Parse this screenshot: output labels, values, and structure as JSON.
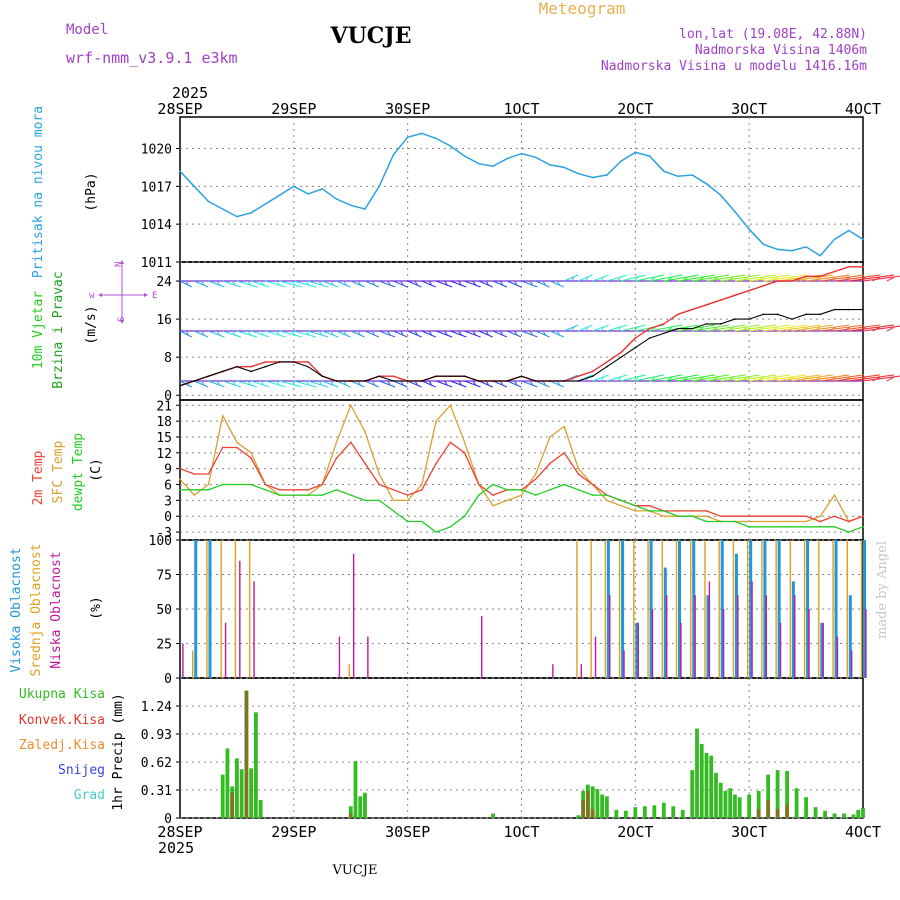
{
  "header": {
    "model_label": "Model",
    "model_name": "wrf-nmm_v3.9.1 e3km",
    "station": "VUCJE",
    "product": "Meteogram",
    "lonlat": "lon,lat (19.08E, 42.88N)",
    "elevation": "Nadmorska Visina 1406m",
    "model_elevation": "Nadmorska Visina u modelu 1416.16m",
    "year_top": "2025",
    "year_bottom": "2025",
    "footer_station": "VUCJE",
    "credit": "made by Angel"
  },
  "colors": {
    "pressure": "#2ba3e0",
    "temp2m": "#f04030",
    "sfctemp": "#d9a030",
    "dewpt": "#22cc22",
    "cloud_high": "#2196d8",
    "cloud_mid": "#e0a020",
    "cloud_low": "#c0189e",
    "precip_total": "#33bb22",
    "precip_conv": "#e03a2a",
    "precip_frz": "#f08a30",
    "precip_snow": "#3344dd",
    "precip_hail": "#44cccc",
    "wind_speed_line": "#e83030",
    "wind_label": "#22cc22",
    "wind_label2": "#1fa01f",
    "axis_violet": "#b050d0",
    "header_violet": "#a040c8",
    "meteogram_gold": "#e8b050"
  },
  "chart_data": [
    {
      "type": "line",
      "id": "pressure",
      "title": "Pritisak na nivou mora",
      "ylabel": "(hPa)",
      "x_ticks": [
        "28SEP",
        "29SEP",
        "30SEP",
        "1OCT",
        "2OCT",
        "3OCT",
        "4OCT"
      ],
      "x_range_hours": [
        0,
        144
      ],
      "ylim": [
        1011,
        1022.5
      ],
      "yticks": [
        1011,
        1014,
        1017,
        1020
      ],
      "hours": [
        0,
        3,
        6,
        9,
        12,
        15,
        18,
        21,
        24,
        27,
        30,
        33,
        36,
        39,
        42,
        45,
        48,
        51,
        54,
        57,
        60,
        63,
        66,
        69,
        72,
        75,
        78,
        81,
        84,
        87,
        90,
        93,
        96,
        99,
        102,
        105,
        108,
        111,
        114,
        117,
        120,
        123,
        126,
        129,
        132,
        135,
        138,
        141,
        144
      ],
      "values": [
        1018.2,
        1017.0,
        1015.8,
        1015.2,
        1014.6,
        1014.9,
        1015.6,
        1016.3,
        1017.0,
        1016.4,
        1016.8,
        1016.0,
        1015.5,
        1015.2,
        1017.0,
        1019.5,
        1020.9,
        1021.2,
        1020.8,
        1020.2,
        1019.4,
        1018.8,
        1018.6,
        1019.2,
        1019.6,
        1019.3,
        1018.7,
        1018.5,
        1018.0,
        1017.7,
        1017.9,
        1019.0,
        1019.7,
        1019.4,
        1018.2,
        1017.8,
        1017.9,
        1017.2,
        1016.3,
        1015.0,
        1013.6,
        1012.4,
        1012.0,
        1011.9,
        1012.2,
        1011.5,
        1012.8,
        1013.5,
        1012.8
      ]
    },
    {
      "type": "line",
      "id": "wind",
      "title": "10m Vjetar",
      "title2": "Brzina i Pravac",
      "ylabel": "(m/s)",
      "direction_legend": "w <--|--> E, N ^ S",
      "ylim": [
        -1,
        28
      ],
      "yticks": [
        0,
        8,
        16,
        24
      ],
      "barb_rows_ms": [
        24,
        13.5,
        3
      ],
      "hours": [
        0,
        3,
        6,
        9,
        12,
        15,
        18,
        21,
        24,
        27,
        30,
        33,
        36,
        39,
        42,
        45,
        48,
        51,
        54,
        57,
        60,
        63,
        66,
        69,
        72,
        75,
        78,
        81,
        84,
        87,
        90,
        93,
        96,
        99,
        102,
        105,
        108,
        111,
        114,
        117,
        120,
        123,
        126,
        129,
        132,
        135,
        138,
        141,
        144
      ],
      "speed": [
        2,
        3,
        4,
        5,
        6,
        5,
        6,
        7,
        7,
        6,
        4,
        3,
        3,
        3,
        4,
        3,
        3,
        3,
        4,
        4,
        4,
        3,
        3,
        3,
        4,
        3,
        3,
        3,
        3,
        4,
        6,
        8,
        10,
        12,
        13,
        14,
        14,
        15,
        15,
        16,
        16,
        17,
        17,
        16,
        17,
        17,
        18,
        18,
        18
      ],
      "gust": [
        2,
        3,
        4,
        5,
        6,
        6,
        7,
        7,
        7,
        7,
        4,
        3,
        3,
        3,
        4,
        4,
        3,
        3,
        4,
        4,
        4,
        3,
        3,
        3,
        4,
        3,
        3,
        3,
        4,
        5,
        7,
        9,
        12,
        14,
        15,
        17,
        18,
        19,
        20,
        21,
        22,
        23,
        24,
        24,
        25,
        25,
        26,
        27,
        27
      ]
    },
    {
      "type": "line",
      "id": "temperature",
      "title": "2m Temp",
      "title2": "SFC Temp",
      "title3": "dewpt Temp",
      "ylabel": "(C)",
      "ylim": [
        -4.5,
        22
      ],
      "yticks": [
        -3,
        0,
        3,
        6,
        9,
        12,
        15,
        18,
        21
      ],
      "hours": [
        0,
        3,
        6,
        9,
        12,
        15,
        18,
        21,
        24,
        27,
        30,
        33,
        36,
        39,
        42,
        45,
        48,
        51,
        54,
        57,
        60,
        63,
        66,
        69,
        72,
        75,
        78,
        81,
        84,
        87,
        90,
        93,
        96,
        99,
        102,
        105,
        108,
        111,
        114,
        117,
        120,
        123,
        126,
        129,
        132,
        135,
        138,
        141,
        144
      ],
      "series": [
        {
          "name": "2m Temp",
          "values": [
            9,
            8,
            8,
            13,
            13,
            11,
            6,
            5,
            5,
            5,
            6,
            11,
            14,
            10,
            6,
            5,
            4,
            5,
            10,
            14,
            12,
            6,
            4,
            5,
            5,
            7,
            10,
            12,
            8,
            6,
            4,
            3,
            2,
            2,
            1,
            1,
            1,
            1,
            0,
            0,
            0,
            0,
            0,
            0,
            0,
            -1,
            0,
            -1,
            0
          ]
        },
        {
          "name": "SFC Temp",
          "values": [
            7,
            4,
            6,
            19,
            14,
            12,
            6,
            4,
            4,
            4,
            6,
            14,
            21,
            16,
            8,
            3,
            3,
            6,
            18,
            21,
            14,
            6,
            2,
            3,
            4,
            8,
            15,
            17,
            9,
            6,
            3,
            2,
            1,
            1,
            0,
            0,
            0,
            0,
            -1,
            -1,
            -1,
            -1,
            -1,
            -1,
            -1,
            0,
            4,
            -1,
            0
          ]
        },
        {
          "name": "dewpt Temp",
          "values": [
            5,
            5,
            5,
            6,
            6,
            6,
            5,
            4,
            4,
            4,
            4,
            5,
            4,
            3,
            3,
            1,
            -1,
            -1,
            -3,
            -2,
            0,
            4,
            6,
            5,
            5,
            4,
            5,
            6,
            5,
            4,
            4,
            3,
            2,
            1,
            1,
            0,
            0,
            -1,
            -1,
            -1,
            -2,
            -2,
            -2,
            -2,
            -2,
            -2,
            -2,
            -3,
            -2
          ]
        }
      ]
    },
    {
      "type": "bar",
      "id": "clouds",
      "title": "Visoka Oblacnost",
      "title2": "Srednja Oblacnost",
      "title3": "Niska Oblacnost",
      "ylabel": "(%)",
      "ylim": [
        0,
        100
      ],
      "yticks": [
        0,
        25,
        50,
        75,
        100
      ],
      "hours": [
        0,
        3,
        6,
        9,
        12,
        15,
        18,
        21,
        24,
        27,
        30,
        33,
        36,
        39,
        42,
        45,
        48,
        51,
        54,
        57,
        60,
        63,
        66,
        69,
        72,
        75,
        78,
        81,
        84,
        87,
        90,
        93,
        96,
        99,
        102,
        105,
        108,
        111,
        114,
        117,
        120,
        123,
        126,
        129,
        132,
        135,
        138,
        141,
        144
      ],
      "series": [
        {
          "name": "Visoka Oblacnost",
          "values": [
            0,
            100,
            100,
            0,
            0,
            0,
            0,
            0,
            0,
            0,
            0,
            0,
            0,
            0,
            0,
            0,
            0,
            0,
            0,
            0,
            0,
            0,
            0,
            0,
            0,
            0,
            0,
            0,
            0,
            0,
            100,
            100,
            40,
            100,
            80,
            100,
            100,
            60,
            100,
            90,
            100,
            100,
            100,
            70,
            100,
            40,
            100,
            60,
            100
          ]
        },
        {
          "name": "Srednja Oblacnost",
          "values": [
            0,
            20,
            100,
            100,
            100,
            100,
            0,
            0,
            0,
            0,
            0,
            0,
            10,
            0,
            0,
            0,
            0,
            0,
            0,
            0,
            0,
            0,
            0,
            0,
            0,
            0,
            0,
            0,
            100,
            100,
            100,
            100,
            100,
            100,
            100,
            100,
            100,
            100,
            100,
            100,
            100,
            100,
            100,
            100,
            100,
            100,
            100,
            100,
            100
          ]
        },
        {
          "name": "Niska Oblacnost",
          "values": [
            25,
            0,
            0,
            40,
            85,
            70,
            0,
            0,
            0,
            0,
            0,
            30,
            90,
            30,
            0,
            0,
            0,
            0,
            0,
            0,
            0,
            45,
            0,
            0,
            0,
            0,
            10,
            0,
            10,
            30,
            60,
            20,
            40,
            50,
            60,
            40,
            60,
            70,
            50,
            60,
            70,
            60,
            40,
            60,
            50,
            40,
            30,
            20,
            50
          ]
        }
      ]
    },
    {
      "type": "bar",
      "id": "precip",
      "title": "Ukupna Kisa",
      "title2": "Konvek.Kisa",
      "title3": "Zaledj.Kisa",
      "title4": "Snijeg",
      "title5": "Grad",
      "ylabel": "1hr Precip (mm)",
      "ylim": [
        0,
        1.55
      ],
      "yticks": [
        0,
        0.31,
        0.62,
        0.93,
        1.24
      ],
      "ytick_labels": [
        "0",
        "0.31",
        "0.62",
        "0.93",
        "1.24"
      ],
      "hours": [
        9,
        10,
        11,
        12,
        13,
        14,
        15,
        16,
        17,
        36,
        37,
        38,
        39,
        66,
        84,
        85,
        86,
        87,
        88,
        89,
        90,
        92,
        94,
        96,
        98,
        100,
        102,
        104,
        106,
        108,
        109,
        110,
        111,
        112,
        113,
        114,
        115,
        116,
        117,
        118,
        120,
        122,
        124,
        126,
        128,
        130,
        132,
        134,
        136,
        138,
        140,
        142,
        143,
        144
      ],
      "series": [
        {
          "name": "Ukupna Kisa",
          "values": [
            0.48,
            0.77,
            0.35,
            0.66,
            0.54,
            1.41,
            0.55,
            1.17,
            0.2,
            0.13,
            0.63,
            0.24,
            0.28,
            0.05,
            0.03,
            0.3,
            0.37,
            0.35,
            0.32,
            0.26,
            0.24,
            0.09,
            0.08,
            0.12,
            0.13,
            0.14,
            0.17,
            0.13,
            0.09,
            0.53,
            0.99,
            0.82,
            0.72,
            0.69,
            0.5,
            0.39,
            0.3,
            0.33,
            0.26,
            0.23,
            0.26,
            0.3,
            0.48,
            0.53,
            0.52,
            0.33,
            0.23,
            0.12,
            0.08,
            0.05,
            0.05,
            0.04,
            0.09,
            0.11
          ]
        },
        {
          "name": "Konvek.Kisa",
          "values": [
            0.0,
            0.0,
            0.28,
            0.0,
            0.0,
            1.41,
            0.0,
            0.0,
            0.0,
            0.05,
            0.0,
            0.0,
            0.0,
            0.0,
            0.0,
            0.2,
            0.3,
            0.1,
            0.0,
            0.0,
            0.0,
            0.0,
            0.0,
            0.0,
            0.0,
            0.0,
            0.0,
            0.0,
            0.0,
            0.0,
            0.0,
            0.0,
            0.0,
            0.0,
            0.0,
            0.0,
            0.0,
            0.0,
            0.0,
            0.0,
            0.0,
            0.1,
            0.2,
            0.1,
            0.15,
            0.0,
            0.0,
            0.0,
            0.0,
            0.0,
            0.0,
            0.0,
            0.0,
            0.0
          ]
        }
      ]
    }
  ]
}
